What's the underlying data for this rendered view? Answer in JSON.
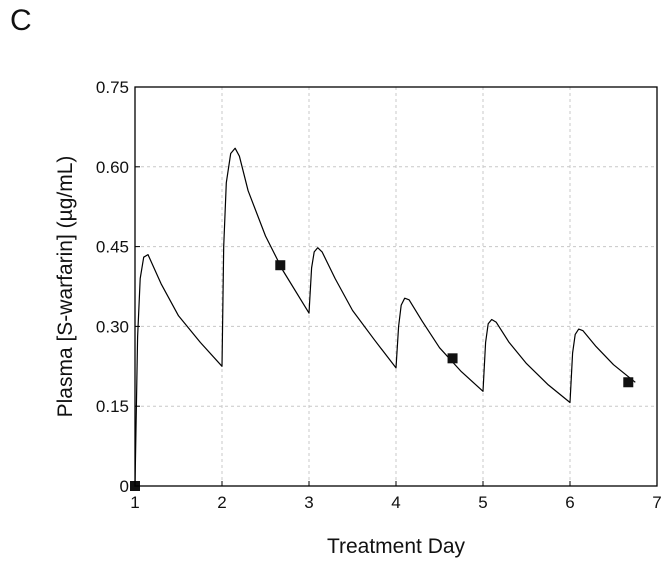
{
  "panel_label": "C",
  "chart_data": {
    "type": "line",
    "title": "",
    "xlabel": "Treatment Day",
    "ylabel": "Plasma [S-warfarin] (µg/mL)",
    "xlim": [
      1,
      7
    ],
    "ylim": [
      0,
      0.75
    ],
    "xticks": [
      1,
      2,
      3,
      4,
      5,
      6,
      7
    ],
    "yticks": [
      0,
      0.15,
      0.3,
      0.45,
      0.6,
      0.75
    ],
    "ytick_labels": [
      "0",
      "0.15",
      "0.30",
      "0.45",
      "0.60",
      "0.75"
    ],
    "grid": true,
    "series": [
      {
        "kind": "line",
        "x": [
          1.0,
          1.03,
          1.06,
          1.1,
          1.15,
          1.3,
          1.5,
          1.75,
          2.0,
          2.02,
          2.05,
          2.1,
          2.15,
          2.2,
          2.3,
          2.5,
          2.7,
          3.0,
          3.03,
          3.06,
          3.1,
          3.15,
          3.3,
          3.5,
          3.75,
          4.0,
          4.03,
          4.06,
          4.1,
          4.15,
          4.3,
          4.5,
          4.75,
          5.0,
          5.03,
          5.06,
          5.1,
          5.15,
          5.3,
          5.5,
          5.75,
          6.0,
          6.03,
          6.06,
          6.1,
          6.15,
          6.3,
          6.5,
          6.75
        ],
        "y": [
          0.0,
          0.28,
          0.39,
          0.43,
          0.435,
          0.38,
          0.32,
          0.27,
          0.225,
          0.45,
          0.57,
          0.625,
          0.635,
          0.62,
          0.555,
          0.47,
          0.405,
          0.325,
          0.41,
          0.44,
          0.448,
          0.44,
          0.39,
          0.33,
          0.275,
          0.222,
          0.3,
          0.34,
          0.353,
          0.35,
          0.31,
          0.26,
          0.215,
          0.178,
          0.27,
          0.305,
          0.313,
          0.308,
          0.27,
          0.23,
          0.19,
          0.157,
          0.25,
          0.285,
          0.295,
          0.292,
          0.262,
          0.228,
          0.195
        ]
      },
      {
        "kind": "scatter",
        "x": [
          1.0,
          2.67,
          4.65,
          6.67
        ],
        "y": [
          0.0,
          0.415,
          0.24,
          0.195
        ]
      }
    ]
  }
}
